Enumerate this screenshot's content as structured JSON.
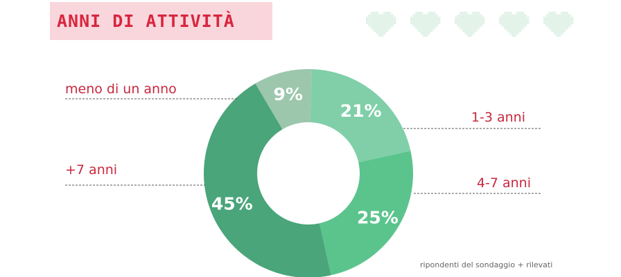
{
  "header": {
    "title": "ANNI DI ATTIVITÀ"
  },
  "decor": {
    "hearts_icon": "pixel-heart-icon",
    "heart_count": 5,
    "heart_color": "#e3f3ea"
  },
  "footnote": "ripondenti del sondaggio + rilevati",
  "chart_data": {
    "type": "pie",
    "donut": true,
    "title": "ANNI DI ATTIVITÀ",
    "unit": "%",
    "slices": [
      {
        "label": "meno di un anno",
        "value": 9,
        "display": "9%",
        "color": "#9cc7ac"
      },
      {
        "label": "1-3 anni",
        "value": 21,
        "display": "21%",
        "color": "#80cfa8"
      },
      {
        "label": "4-7 anni",
        "value": 25,
        "display": "25%",
        "color": "#5bc48d"
      },
      {
        "label": "+7 anni",
        "value": 45,
        "display": "45%",
        "color": "#4aa57a"
      }
    ],
    "label_color": "#c8283f"
  }
}
